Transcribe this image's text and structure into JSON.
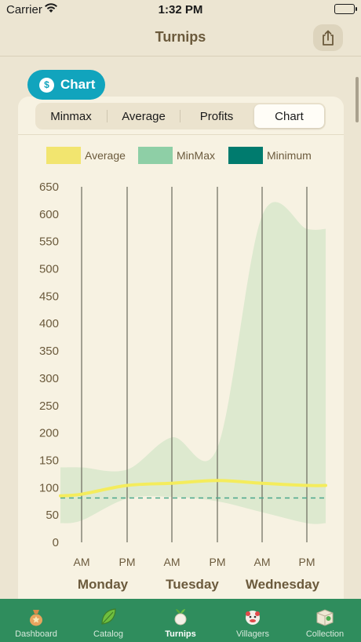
{
  "status_bar": {
    "carrier": "Carrier",
    "time": "1:32 PM"
  },
  "nav": {
    "title": "Turnips",
    "share_icon": "share-icon"
  },
  "chart_pill": {
    "label": "Chart",
    "icon": "dollar-coin-icon",
    "icon_glyph": "$",
    "color": "#11a4bd"
  },
  "segments": [
    {
      "label": "Minmax",
      "selected": false
    },
    {
      "label": "Average",
      "selected": false
    },
    {
      "label": "Profits",
      "selected": false
    },
    {
      "label": "Chart",
      "selected": true
    }
  ],
  "legend": [
    {
      "label": "Average",
      "color": "#f2e56f"
    },
    {
      "label": "MinMax",
      "color": "#8ecfa6"
    },
    {
      "label": "Minimum",
      "color": "#007b6e"
    }
  ],
  "chart_data": {
    "type": "area",
    "title": "",
    "xlabel": "",
    "ylabel": "",
    "ylim": [
      0,
      650
    ],
    "yticks": [
      0,
      50,
      100,
      150,
      200,
      250,
      300,
      350,
      400,
      450,
      500,
      550,
      600,
      650
    ],
    "x": [
      "AM",
      "PM",
      "AM",
      "PM",
      "AM",
      "PM"
    ],
    "day_labels": [
      "Monday",
      "Tuesday",
      "Wednesday"
    ],
    "grid_vertical": true,
    "series": [
      {
        "name": "MinMax",
        "kind": "band",
        "color": "#dde9cf",
        "max": [
          137,
          133,
          192,
          173,
          597,
          573
        ],
        "min": [
          40,
          80,
          83,
          75,
          55,
          35
        ]
      },
      {
        "name": "Average",
        "kind": "line",
        "color": "#f4ec5c",
        "values": [
          88,
          104,
          108,
          113,
          108,
          104
        ]
      },
      {
        "name": "Minimum",
        "kind": "dashed",
        "color": "#4aa88a",
        "values": [
          81,
          81,
          81,
          81,
          81,
          81
        ]
      }
    ]
  },
  "tabs": [
    {
      "label": "Dashboard",
      "icon": "turnip-sack-icon",
      "active": false
    },
    {
      "label": "Catalog",
      "icon": "leaf-icon",
      "active": false
    },
    {
      "label": "Turnips",
      "icon": "turnip-icon",
      "active": true
    },
    {
      "label": "Villagers",
      "icon": "villager-icon",
      "active": false
    },
    {
      "label": "Collection",
      "icon": "collection-box-icon",
      "active": false
    }
  ]
}
